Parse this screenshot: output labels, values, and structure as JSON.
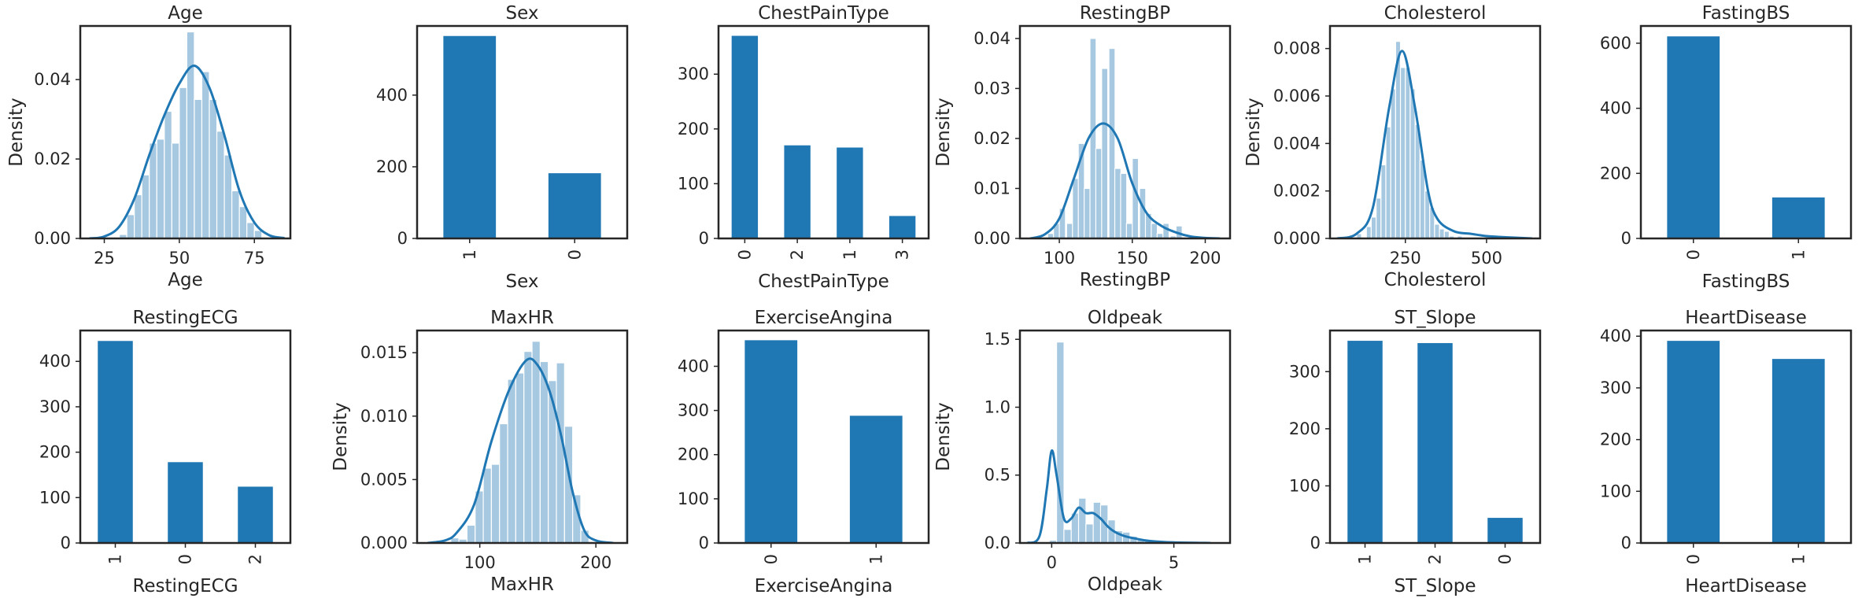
{
  "bar_color": "#1f77b4",
  "hist_color": "#a6c8e0",
  "kde_color": "#1f77b4",
  "chart_data": [
    {
      "id": "age",
      "type": "histogram_kde",
      "title": "Age",
      "xlabel": "Age",
      "ylabel": "Density",
      "xlim": [
        17,
        87
      ],
      "ylim": [
        0,
        0.0535
      ],
      "xticks": [
        25,
        50,
        75
      ],
      "yticks": [
        0,
        0.02,
        0.04
      ],
      "yfmt": 2,
      "bin_width": 2.5,
      "bins": [
        [
          30,
          0.001
        ],
        [
          32.5,
          0.006
        ],
        [
          35,
          0.011
        ],
        [
          37.5,
          0.016
        ],
        [
          40,
          0.024
        ],
        [
          42.5,
          0.025
        ],
        [
          45,
          0.032
        ],
        [
          47.5,
          0.024
        ],
        [
          50,
          0.038
        ],
        [
          52.5,
          0.052
        ],
        [
          55,
          0.035
        ],
        [
          57.5,
          0.042
        ],
        [
          60,
          0.035
        ],
        [
          62.5,
          0.027
        ],
        [
          65,
          0.021
        ],
        [
          67.5,
          0.012
        ],
        [
          70,
          0.008
        ],
        [
          72.5,
          0.004
        ],
        [
          75,
          0.002
        ]
      ],
      "kde": [
        [
          20,
          0.0
        ],
        [
          25,
          0.0005
        ],
        [
          30,
          0.003
        ],
        [
          35,
          0.01
        ],
        [
          40,
          0.021
        ],
        [
          45,
          0.031
        ],
        [
          50,
          0.039
        ],
        [
          55,
          0.0435
        ],
        [
          60,
          0.038
        ],
        [
          65,
          0.026
        ],
        [
          70,
          0.012
        ],
        [
          75,
          0.004
        ],
        [
          80,
          0.0008
        ],
        [
          85,
          0.0001
        ]
      ]
    },
    {
      "id": "sex",
      "type": "bar",
      "title": "Sex",
      "xlabel": "Sex",
      "ylabel": "",
      "categories": [
        "1",
        "0"
      ],
      "values": [
        565,
        182
      ],
      "ylim": [
        0,
        593
      ],
      "yticks": [
        0,
        200,
        400
      ]
    },
    {
      "id": "chestpaintype",
      "type": "bar",
      "title": "ChestPainType",
      "xlabel": "ChestPainType",
      "ylabel": "",
      "categories": [
        "0",
        "2",
        "1",
        "3"
      ],
      "values": [
        370,
        170,
        166,
        41
      ],
      "ylim": [
        0,
        388
      ],
      "yticks": [
        0,
        100,
        200,
        300
      ]
    },
    {
      "id": "restingbp",
      "type": "histogram_kde",
      "title": "RestingBP",
      "xlabel": "RestingBP",
      "ylabel": "Density",
      "xlim": [
        73,
        217
      ],
      "ylim": [
        0,
        0.0425
      ],
      "xticks": [
        100,
        150,
        200
      ],
      "yticks": [
        0,
        0.01,
        0.02,
        0.03,
        0.04
      ],
      "yfmt": 2,
      "bin_width": 4.2,
      "bins": [
        [
          92,
          0.001
        ],
        [
          96,
          0.003
        ],
        [
          100,
          0.006
        ],
        [
          105,
          0.003
        ],
        [
          109,
          0.012
        ],
        [
          113,
          0.019
        ],
        [
          117,
          0.01
        ],
        [
          121,
          0.04
        ],
        [
          125,
          0.018
        ],
        [
          129,
          0.034
        ],
        [
          134,
          0.038
        ],
        [
          138,
          0.014
        ],
        [
          142,
          0.013
        ],
        [
          146,
          0.003
        ],
        [
          150,
          0.016
        ],
        [
          155,
          0.01
        ],
        [
          159,
          0.005
        ],
        [
          163,
          0.003
        ],
        [
          167,
          0.001
        ],
        [
          171,
          0.003
        ],
        [
          176,
          0.0005
        ],
        [
          180,
          0.0025
        ]
      ],
      "kde": [
        [
          80,
          0.0
        ],
        [
          90,
          0.0008
        ],
        [
          100,
          0.004
        ],
        [
          110,
          0.012
        ],
        [
          120,
          0.02
        ],
        [
          130,
          0.023
        ],
        [
          140,
          0.02
        ],
        [
          150,
          0.011
        ],
        [
          160,
          0.005
        ],
        [
          170,
          0.0025
        ],
        [
          180,
          0.0012
        ],
        [
          190,
          0.0004
        ],
        [
          200,
          0.0001
        ],
        [
          210,
          0.0
        ]
      ]
    },
    {
      "id": "cholesterol",
      "type": "histogram_kde",
      "title": "Cholesterol",
      "xlabel": "Cholesterol",
      "ylabel": "Density",
      "xlim": [
        18,
        665
      ],
      "ylim": [
        0,
        0.00895
      ],
      "xticks": [
        250,
        500
      ],
      "yticks": [
        0,
        0.002,
        0.004,
        0.006,
        0.008
      ],
      "yfmt": 3,
      "bin_width": 15,
      "bins": [
        [
          100,
          0.0002
        ],
        [
          130,
          0.0005
        ],
        [
          145,
          0.0009
        ],
        [
          160,
          0.0017
        ],
        [
          175,
          0.0031
        ],
        [
          190,
          0.0047
        ],
        [
          205,
          0.0063
        ],
        [
          220,
          0.0083
        ],
        [
          235,
          0.0072
        ],
        [
          250,
          0.0072
        ],
        [
          265,
          0.0063
        ],
        [
          280,
          0.0048
        ],
        [
          295,
          0.0033
        ],
        [
          310,
          0.002
        ],
        [
          325,
          0.0013
        ],
        [
          340,
          0.0006
        ],
        [
          355,
          0.0004
        ],
        [
          370,
          0.0003
        ],
        [
          385,
          0.0001
        ],
        [
          410,
          0.0001
        ],
        [
          460,
          5e-05
        ],
        [
          520,
          3e-05
        ],
        [
          590,
          2e-05
        ]
      ],
      "kde": [
        [
          40,
          0.0
        ],
        [
          100,
          0.0002
        ],
        [
          150,
          0.0013
        ],
        [
          200,
          0.0055
        ],
        [
          240,
          0.0079
        ],
        [
          280,
          0.0055
        ],
        [
          320,
          0.002
        ],
        [
          350,
          0.0008
        ],
        [
          400,
          0.0003
        ],
        [
          450,
          0.0002
        ],
        [
          500,
          0.0001
        ],
        [
          560,
          5e-05
        ],
        [
          640,
          0.0
        ]
      ]
    },
    {
      "id": "fastingbs",
      "type": "bar",
      "title": "FastingBS",
      "xlabel": "FastingBS",
      "ylabel": "",
      "categories": [
        "0",
        "1"
      ],
      "values": [
        621,
        126
      ],
      "ylim": [
        0,
        653
      ],
      "yticks": [
        0,
        200,
        400,
        600
      ]
    },
    {
      "id": "restingecg",
      "type": "bar",
      "title": "RestingECG",
      "xlabel": "RestingECG",
      "ylabel": "",
      "categories": [
        "1",
        "0",
        "2"
      ],
      "values": [
        445,
        178,
        124
      ],
      "ylim": [
        0,
        468
      ],
      "yticks": [
        0,
        100,
        200,
        300,
        400
      ]
    },
    {
      "id": "maxhr",
      "type": "histogram_kde",
      "title": "MaxHR",
      "xlabel": "MaxHR",
      "ylabel": "Density",
      "xlim": [
        46,
        227
      ],
      "ylim": [
        0,
        0.01675
      ],
      "xticks": [
        100,
        200
      ],
      "yticks": [
        0,
        0.005,
        0.01,
        0.015
      ],
      "yfmt": 3,
      "bin_width": 7,
      "bins": [
        [
          75,
          0.0004
        ],
        [
          82,
          0.0003
        ],
        [
          89,
          0.0014
        ],
        [
          96,
          0.0041
        ],
        [
          103,
          0.0059
        ],
        [
          110,
          0.0062
        ],
        [
          117,
          0.0094
        ],
        [
          124,
          0.0129
        ],
        [
          131,
          0.0134
        ],
        [
          138,
          0.0151
        ],
        [
          145,
          0.0159
        ],
        [
          152,
          0.0143
        ],
        [
          159,
          0.0128
        ],
        [
          166,
          0.0142
        ],
        [
          173,
          0.0092
        ],
        [
          180,
          0.0038
        ],
        [
          187,
          0.001
        ]
      ],
      "kde": [
        [
          55,
          0.0
        ],
        [
          70,
          0.0002
        ],
        [
          80,
          0.0008
        ],
        [
          95,
          0.003
        ],
        [
          110,
          0.008
        ],
        [
          125,
          0.012
        ],
        [
          140,
          0.0144
        ],
        [
          150,
          0.014
        ],
        [
          160,
          0.012
        ],
        [
          170,
          0.0085
        ],
        [
          180,
          0.004
        ],
        [
          190,
          0.001
        ],
        [
          200,
          0.0002
        ],
        [
          215,
          0.0
        ]
      ]
    },
    {
      "id": "exerciseangina",
      "type": "bar",
      "title": "ExerciseAngina",
      "xlabel": "ExerciseAngina",
      "ylabel": "",
      "categories": [
        "0",
        "1"
      ],
      "values": [
        459,
        288
      ],
      "ylim": [
        0,
        481
      ],
      "yticks": [
        0,
        100,
        200,
        300,
        400
      ]
    },
    {
      "id": "oldpeak",
      "type": "histogram_kde",
      "title": "Oldpeak",
      "xlabel": "Oldpeak",
      "ylabel": "Density",
      "xlim": [
        -1.3,
        7.3
      ],
      "ylim": [
        0,
        1.565
      ],
      "xticks": [
        0,
        5
      ],
      "yticks": [
        0,
        0.5,
        1,
        1.5
      ],
      "yfmt": 1,
      "bin_width": 0.305,
      "bins": [
        [
          -0.1,
          0.02
        ],
        [
          0.2,
          1.48
        ],
        [
          0.5,
          0.1
        ],
        [
          0.8,
          0.22
        ],
        [
          1.1,
          0.33
        ],
        [
          1.4,
          0.14
        ],
        [
          1.7,
          0.3
        ],
        [
          2.0,
          0.28
        ],
        [
          2.3,
          0.17
        ],
        [
          2.6,
          0.09
        ],
        [
          2.9,
          0.08
        ],
        [
          3.2,
          0.05
        ],
        [
          3.5,
          0.03
        ],
        [
          3.8,
          0.02
        ],
        [
          4.1,
          0.01
        ],
        [
          4.4,
          0.01
        ]
      ],
      "kde": [
        [
          -1.0,
          0.0
        ],
        [
          -0.5,
          0.05
        ],
        [
          -0.2,
          0.4
        ],
        [
          0.0,
          0.68
        ],
        [
          0.2,
          0.5
        ],
        [
          0.5,
          0.18
        ],
        [
          0.8,
          0.18
        ],
        [
          1.1,
          0.26
        ],
        [
          1.4,
          0.22
        ],
        [
          1.7,
          0.22
        ],
        [
          2.0,
          0.18
        ],
        [
          2.3,
          0.12
        ],
        [
          2.6,
          0.08
        ],
        [
          3.0,
          0.05
        ],
        [
          3.5,
          0.03
        ],
        [
          4.0,
          0.015
        ],
        [
          5.0,
          0.004
        ],
        [
          6.5,
          0.0
        ]
      ]
    },
    {
      "id": "st_slope",
      "type": "bar",
      "title": "ST_Slope",
      "xlabel": "ST_Slope",
      "ylabel": "",
      "categories": [
        "1",
        "2",
        "0"
      ],
      "values": [
        354,
        350,
        44
      ],
      "ylim": [
        0,
        372
      ],
      "yticks": [
        0,
        100,
        200,
        300
      ]
    },
    {
      "id": "heartdisease",
      "type": "bar",
      "title": "HeartDisease",
      "xlabel": "HeartDisease",
      "ylabel": "",
      "categories": [
        "0",
        "1"
      ],
      "values": [
        391,
        356
      ],
      "ylim": [
        0,
        411
      ],
      "yticks": [
        0,
        100,
        200,
        300,
        400
      ]
    }
  ]
}
